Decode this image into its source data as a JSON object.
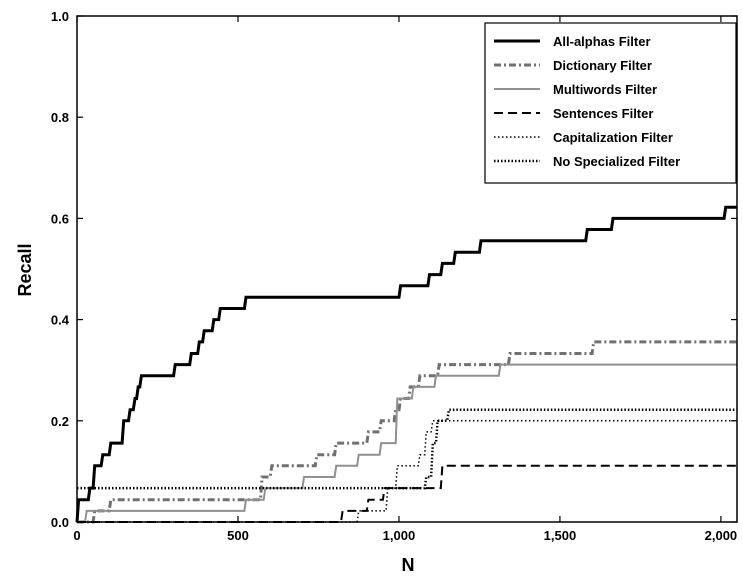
{
  "chart_data": {
    "type": "line",
    "title": "",
    "xlabel": "N",
    "ylabel": "Recall",
    "xlim": [
      0,
      2050
    ],
    "ylim": [
      0,
      1.0
    ],
    "grid": false,
    "legend_position": "top-right",
    "x_ticks": [
      0,
      500,
      1000,
      1500,
      2000
    ],
    "x_tick_labels": [
      "0",
      "500",
      "1,000",
      "1,500",
      "2,000"
    ],
    "y_ticks": [
      0.0,
      0.2,
      0.4,
      0.6,
      0.8,
      1.0
    ],
    "y_tick_labels": [
      "0.0",
      "0.2",
      "0.4",
      "0.6",
      "0.8",
      "1.0"
    ],
    "series": [
      {
        "name": "All-alphas Filter",
        "color": "#000000",
        "style": "solid-thick",
        "points": [
          [
            0,
            0
          ],
          [
            5,
            0.044
          ],
          [
            35,
            0.044
          ],
          [
            40,
            0.067
          ],
          [
            50,
            0.067
          ],
          [
            55,
            0.111
          ],
          [
            75,
            0.111
          ],
          [
            80,
            0.133
          ],
          [
            100,
            0.133
          ],
          [
            105,
            0.156
          ],
          [
            140,
            0.156
          ],
          [
            145,
            0.2
          ],
          [
            160,
            0.2
          ],
          [
            165,
            0.222
          ],
          [
            175,
            0.222
          ],
          [
            180,
            0.244
          ],
          [
            185,
            0.244
          ],
          [
            190,
            0.267
          ],
          [
            195,
            0.267
          ],
          [
            200,
            0.289
          ],
          [
            300,
            0.289
          ],
          [
            305,
            0.311
          ],
          [
            350,
            0.311
          ],
          [
            355,
            0.333
          ],
          [
            375,
            0.333
          ],
          [
            380,
            0.356
          ],
          [
            390,
            0.356
          ],
          [
            395,
            0.378
          ],
          [
            420,
            0.378
          ],
          [
            425,
            0.4
          ],
          [
            440,
            0.4
          ],
          [
            445,
            0.422
          ],
          [
            520,
            0.422
          ],
          [
            525,
            0.444
          ],
          [
            1000,
            0.444
          ],
          [
            1005,
            0.467
          ],
          [
            1090,
            0.467
          ],
          [
            1095,
            0.489
          ],
          [
            1130,
            0.489
          ],
          [
            1135,
            0.511
          ],
          [
            1170,
            0.511
          ],
          [
            1175,
            0.533
          ],
          [
            1250,
            0.533
          ],
          [
            1255,
            0.556
          ],
          [
            1580,
            0.556
          ],
          [
            1585,
            0.578
          ],
          [
            1660,
            0.578
          ],
          [
            1665,
            0.6
          ],
          [
            2010,
            0.6
          ],
          [
            2015,
            0.622
          ],
          [
            2050,
            0.622
          ]
        ]
      },
      {
        "name": "Dictionary Filter",
        "color": "#707070",
        "style": "dash-dot-thick",
        "points": [
          [
            0,
            0
          ],
          [
            50,
            0
          ],
          [
            55,
            0.022
          ],
          [
            100,
            0.022
          ],
          [
            105,
            0.044
          ],
          [
            570,
            0.044
          ],
          [
            575,
            0.089
          ],
          [
            600,
            0.089
          ],
          [
            605,
            0.111
          ],
          [
            740,
            0.111
          ],
          [
            745,
            0.133
          ],
          [
            800,
            0.133
          ],
          [
            805,
            0.156
          ],
          [
            900,
            0.156
          ],
          [
            905,
            0.178
          ],
          [
            940,
            0.178
          ],
          [
            945,
            0.2
          ],
          [
            985,
            0.2
          ],
          [
            990,
            0.222
          ],
          [
            1000,
            0.222
          ],
          [
            1005,
            0.244
          ],
          [
            1030,
            0.244
          ],
          [
            1035,
            0.267
          ],
          [
            1060,
            0.267
          ],
          [
            1065,
            0.289
          ],
          [
            1120,
            0.289
          ],
          [
            1125,
            0.311
          ],
          [
            1340,
            0.311
          ],
          [
            1345,
            0.333
          ],
          [
            1600,
            0.333
          ],
          [
            1605,
            0.356
          ],
          [
            2050,
            0.356
          ]
        ]
      },
      {
        "name": "Multiwords Filter",
        "color": "#909090",
        "style": "solid",
        "points": [
          [
            0,
            0
          ],
          [
            25,
            0
          ],
          [
            30,
            0.022
          ],
          [
            520,
            0.022
          ],
          [
            525,
            0.044
          ],
          [
            580,
            0.044
          ],
          [
            585,
            0.067
          ],
          [
            700,
            0.067
          ],
          [
            705,
            0.089
          ],
          [
            800,
            0.089
          ],
          [
            805,
            0.111
          ],
          [
            870,
            0.111
          ],
          [
            875,
            0.133
          ],
          [
            940,
            0.133
          ],
          [
            945,
            0.156
          ],
          [
            990,
            0.156
          ],
          [
            995,
            0.244
          ],
          [
            1040,
            0.244
          ],
          [
            1045,
            0.267
          ],
          [
            1110,
            0.267
          ],
          [
            1115,
            0.289
          ],
          [
            1310,
            0.289
          ],
          [
            1315,
            0.311
          ],
          [
            2050,
            0.311
          ]
        ]
      },
      {
        "name": "Sentences Filter",
        "color": "#000000",
        "style": "dashed",
        "points": [
          [
            0,
            0
          ],
          [
            820,
            0
          ],
          [
            825,
            0.022
          ],
          [
            900,
            0.022
          ],
          [
            905,
            0.044
          ],
          [
            950,
            0.044
          ],
          [
            955,
            0.067
          ],
          [
            1130,
            0.067
          ],
          [
            1135,
            0.111
          ],
          [
            2050,
            0.111
          ]
        ]
      },
      {
        "name": "Capitalization Filter",
        "color": "#000000",
        "style": "dotted",
        "points": [
          [
            0,
            0
          ],
          [
            870,
            0
          ],
          [
            875,
            0.022
          ],
          [
            960,
            0.022
          ],
          [
            965,
            0.067
          ],
          [
            990,
            0.067
          ],
          [
            995,
            0.111
          ],
          [
            1060,
            0.111
          ],
          [
            1065,
            0.133
          ],
          [
            1080,
            0.133
          ],
          [
            1085,
            0.178
          ],
          [
            1100,
            0.178
          ],
          [
            1105,
            0.2
          ],
          [
            2050,
            0.2
          ]
        ]
      },
      {
        "name": "No Specialized Filter",
        "color": "#000000",
        "style": "dotted-thick",
        "points": [
          [
            0,
            0.067
          ],
          [
            1080,
            0.067
          ],
          [
            1085,
            0.089
          ],
          [
            1100,
            0.089
          ],
          [
            1105,
            0.156
          ],
          [
            1115,
            0.156
          ],
          [
            1120,
            0.2
          ],
          [
            1150,
            0.2
          ],
          [
            1155,
            0.222
          ],
          [
            2050,
            0.222
          ]
        ]
      }
    ]
  }
}
